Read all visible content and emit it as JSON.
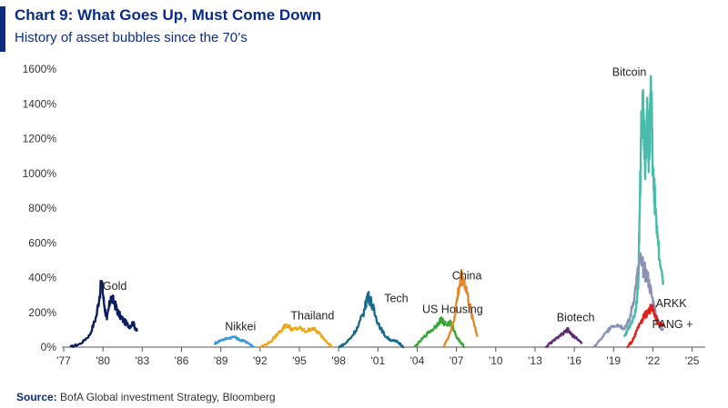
{
  "header": {
    "title": "Chart 9: What Goes Up, Must Come Down",
    "subtitle": "History of asset bubbles since the 70’s"
  },
  "footer": {
    "source_label": "Source:",
    "source_text": "BofA Global investment Strategy, Bloomberg"
  },
  "chart_data": {
    "type": "line",
    "title": "Chart 9: What Goes Up, Must Come Down",
    "subtitle": "History of asset bubbles since the 70’s",
    "xlabel": "",
    "ylabel": "",
    "xlim": [
      1977,
      2026
    ],
    "ylim": [
      0,
      1600
    ],
    "y_unit": "%",
    "x_ticks": [
      "'77",
      "'80",
      "'83",
      "'86",
      "'89",
      "'92",
      "'95",
      "'98",
      "'01",
      "'04",
      "'07",
      "'10",
      "'13",
      "'16",
      "'19",
      "'22",
      "'25"
    ],
    "x_tick_years": [
      1977,
      1980,
      1983,
      1986,
      1989,
      1992,
      1995,
      1998,
      2001,
      2004,
      2007,
      2010,
      2013,
      2016,
      2019,
      2022,
      2025
    ],
    "y_ticks": [
      "0%",
      "200%",
      "400%",
      "600%",
      "800%",
      "1000%",
      "1200%",
      "1400%",
      "1600%"
    ],
    "y_tick_values": [
      0,
      200,
      400,
      600,
      800,
      1000,
      1200,
      1400,
      1600
    ],
    "grid": false,
    "legend": "none (series labelled directly on chart)",
    "series": [
      {
        "name": "Gold",
        "color": "#0b1f5e",
        "x": [
          1977.5,
          1978.3,
          1979.0,
          1979.5,
          1979.9,
          1980.1,
          1980.3,
          1980.6,
          1980.9,
          1981.2,
          1981.6,
          1982.0,
          1982.3,
          1982.6
        ],
        "y": [
          0,
          20,
          70,
          180,
          380,
          240,
          160,
          290,
          250,
          190,
          150,
          120,
          140,
          90
        ]
      },
      {
        "name": "Nikkei",
        "color": "#3b9ad9",
        "x": [
          1988.5,
          1989.0,
          1989.5,
          1990.0,
          1990.5,
          1991.0,
          1991.5
        ],
        "y": [
          20,
          40,
          50,
          60,
          40,
          30,
          0
        ]
      },
      {
        "name": "Thailand",
        "color": "#e8a91b",
        "x": [
          1992.0,
          1992.8,
          1993.5,
          1994.0,
          1994.5,
          1995.0,
          1995.5,
          1996.0,
          1996.5,
          1997.0,
          1997.5
        ],
        "y": [
          0,
          30,
          90,
          130,
          100,
          110,
          90,
          110,
          80,
          40,
          0
        ]
      },
      {
        "name": "Tech",
        "color": "#1a6a8c",
        "x": [
          1998.0,
          1998.5,
          1999.0,
          1999.5,
          2000.0,
          2000.2,
          2000.5,
          2000.8,
          2001.2,
          2001.6,
          2002.0,
          2002.5,
          2003.0
        ],
        "y": [
          0,
          20,
          60,
          120,
          220,
          300,
          260,
          180,
          110,
          60,
          40,
          30,
          0
        ]
      },
      {
        "name": "US Housing",
        "color": "#3aa63a",
        "x": [
          2003.8,
          2004.3,
          2004.8,
          2005.3,
          2005.8,
          2006.2,
          2006.6,
          2007.0,
          2007.3,
          2007.6
        ],
        "y": [
          0,
          40,
          80,
          110,
          160,
          130,
          140,
          60,
          30,
          0
        ]
      },
      {
        "name": "China",
        "color": "#e08a2e",
        "x": [
          2006.0,
          2006.4,
          2006.8,
          2007.1,
          2007.4,
          2007.7,
          2008.0,
          2008.3,
          2008.6
        ],
        "y": [
          0,
          60,
          150,
          300,
          420,
          350,
          240,
          150,
          60
        ]
      },
      {
        "name": "Biotech",
        "color": "#5e2a73",
        "x": [
          2013.8,
          2014.3,
          2014.8,
          2015.2,
          2015.5,
          2015.8,
          2016.2,
          2016.6
        ],
        "y": [
          0,
          30,
          60,
          80,
          100,
          70,
          50,
          20
        ]
      },
      {
        "name": "Bitcoin",
        "color": "#4bbcac",
        "x": [
          2019.8,
          2020.1,
          2020.4,
          2020.7,
          2020.9,
          2021.0,
          2021.1,
          2021.25,
          2021.4,
          2021.55,
          2021.7,
          2021.85,
          2022.0,
          2022.2,
          2022.5,
          2022.8
        ],
        "y": [
          60,
          100,
          150,
          220,
          400,
          800,
          1200,
          1480,
          1000,
          1350,
          1100,
          1560,
          1000,
          800,
          500,
          380
        ]
      },
      {
        "name": "ARKK",
        "color": "#8a93b3",
        "x": [
          2017.5,
          2018.2,
          2018.8,
          2019.3,
          2019.8,
          2020.2,
          2020.6,
          2021.0,
          2021.3,
          2021.6,
          2021.9,
          2022.2,
          2022.5,
          2022.8
        ],
        "y": [
          0,
          60,
          120,
          130,
          110,
          150,
          300,
          500,
          450,
          400,
          300,
          200,
          120,
          100
        ]
      },
      {
        "name": "FANG +",
        "color": "#e0201b",
        "x": [
          2020.0,
          2020.4,
          2020.8,
          2021.2,
          2021.6,
          2021.9,
          2022.2,
          2022.5,
          2022.8
        ],
        "y": [
          0,
          30,
          100,
          160,
          200,
          230,
          170,
          130,
          130
        ]
      }
    ]
  }
}
